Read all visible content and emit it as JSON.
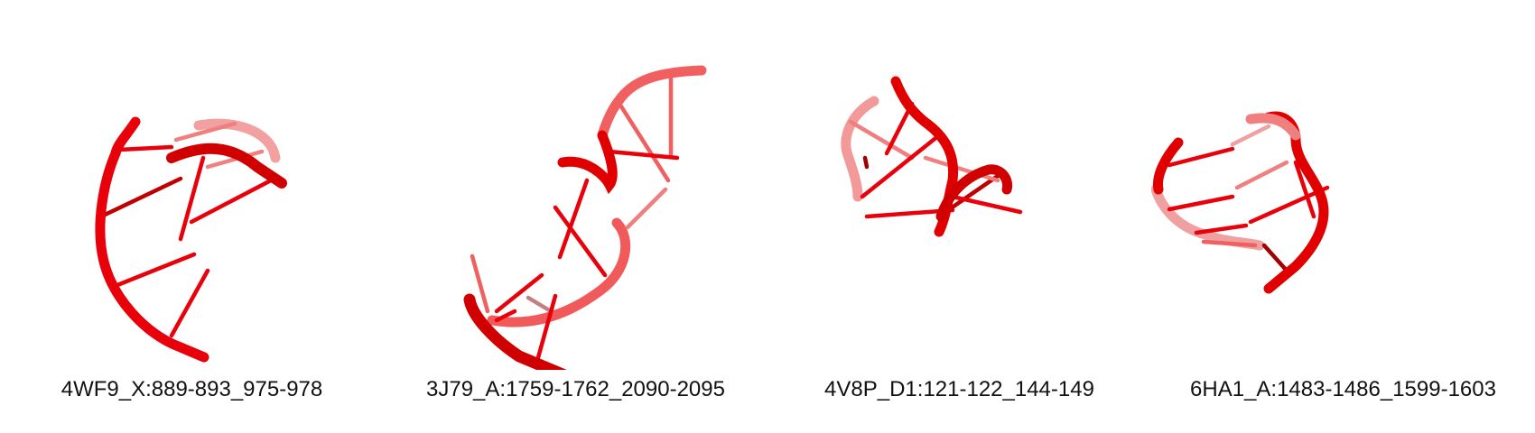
{
  "structures": [
    {
      "label": "4WF9_X:889-893_975-978"
    },
    {
      "label": "3J79_A:1759-1762_2090-2095"
    },
    {
      "label": "4V8P_D1:121-122_144-149"
    },
    {
      "label": "6HA1_A:1483-1486_1599-1603"
    }
  ],
  "colors": {
    "strand": "#e8000b",
    "strand_dark": "#a80000",
    "strand_light": "#f08080",
    "background": "#ffffff"
  }
}
